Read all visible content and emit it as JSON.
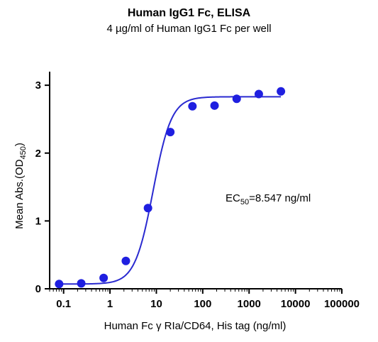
{
  "chart_data": {
    "type": "scatter",
    "title": "Human IgG1 Fc, ELISA",
    "subtitle": "4 µg/ml of Human IgG1 Fc per well",
    "xlabel": "Human Fc γ RIa/CD64, His tag (ng/ml)",
    "ylabel_main": "Mean Abs.(OD",
    "ylabel_sub": "450",
    "ylabel_close": ")",
    "x_scale": "log",
    "xlim": [
      0.05,
      100000
    ],
    "ylim": [
      0,
      3.2
    ],
    "x_ticks": [
      0.1,
      1,
      10,
      100,
      1000,
      10000,
      100000
    ],
    "x_tick_labels": [
      "0.1",
      "1",
      "10",
      "100",
      "1000",
      "10000",
      "100000"
    ],
    "y_ticks": [
      0,
      1,
      2,
      3
    ],
    "y_tick_labels": [
      "0",
      "1",
      "2",
      "3"
    ],
    "grid": false,
    "series": [
      {
        "marker_color": "#1f1fe0",
        "line_color": "#2a2ad0",
        "x": [
          0.08,
          0.24,
          0.73,
          2.2,
          6.6,
          20,
          60,
          180,
          540,
          1620,
          4860
        ],
        "y": [
          0.07,
          0.08,
          0.16,
          0.41,
          1.19,
          2.31,
          2.69,
          2.7,
          2.8,
          2.87,
          2.91
        ]
      }
    ],
    "fit": {
      "bottom": 0.07,
      "top": 2.83,
      "ec50": 8.547,
      "hill": 2.2
    },
    "annotation": {
      "prefix": "EC",
      "sub": "50",
      "suffix": "=8.547 ng/ml"
    }
  }
}
